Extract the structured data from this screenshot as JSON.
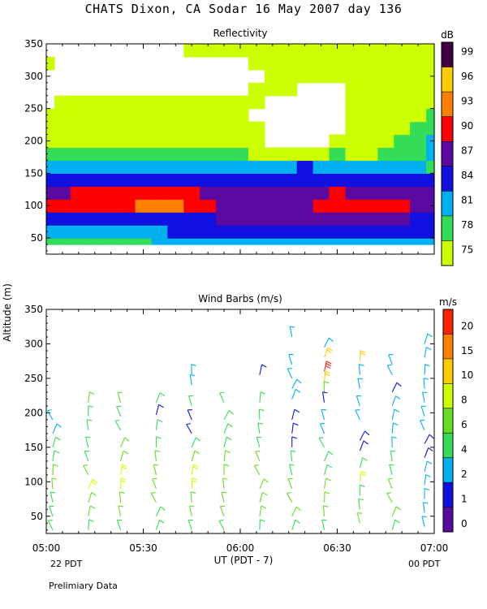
{
  "title": "CHATS Dixon, CA  Sodar  16 May 2007  day 136",
  "shared_ylabel": "Altitude (m)",
  "xlabel": "UT  (PDT - 7)",
  "left_local_time": "22 PDT",
  "right_local_time": "00 PDT",
  "footnote": "Prelimiary Data",
  "chart_data": [
    {
      "type": "heatmap",
      "title": "Reflectivity",
      "colorbar_unit": "dB",
      "ylim": [
        25,
        350
      ],
      "yticks": [
        50,
        100,
        150,
        200,
        250,
        300,
        350
      ],
      "xticks": [
        "05:00",
        "05:30",
        "06:00",
        "06:30",
        "07:00"
      ],
      "x": [
        "05:00",
        "05:05",
        "05:10",
        "05:15",
        "05:20",
        "05:25",
        "05:30",
        "05:35",
        "05:40",
        "05:45",
        "05:50",
        "05:55",
        "06:00",
        "06:05",
        "06:10",
        "06:15",
        "06:20",
        "06:25",
        "06:30",
        "06:35",
        "06:40",
        "06:45",
        "06:50",
        "06:55",
        "07:00"
      ],
      "y": [
        40,
        60,
        80,
        100,
        120,
        140,
        160,
        180,
        200,
        220,
        240,
        260,
        280,
        300,
        320,
        340,
        350
      ],
      "colorbar": {
        "levels": [
          75,
          78,
          81,
          84,
          87,
          90,
          93,
          96,
          99
        ],
        "colors": [
          "#ccff00",
          "#33dd55",
          "#00b0f0",
          "#1010e0",
          "#5a0aa0",
          "#ff0000",
          "#ff8000",
          "#ffcc00",
          "#400040"
        ]
      },
      "values": [
        [
          80,
          80,
          79,
          80,
          80,
          80,
          80,
          81,
          81,
          81,
          81,
          82,
          82,
          82,
          82,
          82,
          82,
          82,
          82,
          82,
          82,
          82,
          82,
          82,
          82
        ],
        [
          82,
          82,
          82,
          82,
          82,
          82,
          83,
          83,
          84,
          84,
          84,
          85,
          85,
          85,
          85,
          85,
          85,
          85,
          85,
          85,
          85,
          85,
          85,
          85,
          84
        ],
        [
          85,
          86,
          86,
          86,
          86,
          86,
          86,
          86,
          86,
          86,
          86,
          87,
          88,
          88,
          88,
          88,
          88,
          88,
          88,
          88,
          88,
          88,
          87,
          86,
          86
        ],
        [
          91,
          91,
          91,
          91,
          91,
          92,
          93,
          94,
          94,
          92,
          91,
          88,
          88,
          88,
          88,
          88,
          89,
          90,
          91,
          91,
          91,
          91,
          90,
          89,
          88
        ],
        [
          88,
          89,
          90,
          90,
          90,
          90,
          90,
          90,
          90,
          90,
          89,
          88,
          88,
          88,
          88,
          88,
          88,
          89,
          90,
          89,
          88,
          88,
          88,
          88,
          88
        ],
        [
          85,
          85,
          85,
          85,
          86,
          86,
          86,
          86,
          86,
          86,
          86,
          86,
          86,
          86,
          86,
          85,
          85,
          86,
          86,
          86,
          86,
          86,
          85,
          85,
          85
        ],
        [
          82,
          82,
          83,
          82,
          82,
          82,
          82,
          82,
          82,
          82,
          82,
          83,
          83,
          83,
          83,
          83,
          84,
          83,
          83,
          83,
          82,
          82,
          82,
          82,
          80
        ],
        [
          78,
          78,
          78,
          78,
          78,
          79,
          79,
          78,
          78,
          78,
          78,
          78,
          78,
          77,
          77,
          77,
          77,
          77,
          78,
          77,
          77,
          78,
          78,
          80,
          81
        ],
        [
          77,
          77,
          77,
          77,
          77,
          77,
          76,
          76,
          76,
          77,
          77,
          77,
          77,
          76,
          73,
          73,
          73,
          74,
          76,
          77,
          76,
          77,
          78,
          79,
          81
        ],
        [
          76,
          76,
          76,
          76,
          76,
          76,
          76,
          76,
          76,
          76,
          76,
          76,
          76,
          75,
          70,
          70,
          70,
          72,
          74,
          75,
          76,
          76,
          77,
          78,
          79
        ],
        [
          75,
          75,
          75,
          76,
          76,
          76,
          75,
          75,
          75,
          75,
          75,
          75,
          75,
          70,
          70,
          70,
          70,
          70,
          72,
          75,
          75,
          76,
          76,
          77,
          78
        ],
        [
          70,
          75,
          77,
          75,
          75,
          75,
          75,
          75,
          75,
          75,
          75,
          75,
          75,
          75,
          70,
          70,
          70,
          70,
          70,
          75,
          75,
          76,
          75,
          76,
          77
        ],
        [
          70,
          70,
          70,
          70,
          70,
          70,
          70,
          70,
          70,
          70,
          70,
          70,
          70,
          75,
          75,
          75,
          72,
          72,
          70,
          75,
          75,
          75,
          75,
          76,
          76
        ],
        [
          70,
          70,
          70,
          70,
          70,
          70,
          70,
          70,
          70,
          70,
          70,
          70,
          70,
          70,
          75,
          76,
          76,
          76,
          75,
          75,
          75,
          75,
          75,
          76,
          76
        ],
        [
          75,
          70,
          70,
          70,
          70,
          70,
          70,
          70,
          70,
          70,
          70,
          70,
          70,
          75,
          76,
          77,
          77,
          77,
          75,
          75,
          75,
          75,
          75,
          75,
          75
        ],
        [
          70,
          70,
          70,
          70,
          70,
          70,
          70,
          70,
          70,
          75,
          77,
          76,
          75,
          75,
          76,
          76,
          76,
          75,
          75,
          75,
          75,
          75,
          75,
          75,
          77
        ],
        [
          70,
          70,
          70,
          70,
          70,
          70,
          70,
          70,
          70,
          75,
          77,
          76,
          75,
          75,
          75,
          75,
          75,
          75,
          75,
          75,
          75,
          75,
          75,
          75,
          77
        ]
      ]
    },
    {
      "type": "scatter",
      "title": "Wind Barbs (m/s)",
      "colorbar_unit": "m/s",
      "ylim": [
        25,
        350
      ],
      "yticks": [
        50,
        100,
        150,
        200,
        250,
        300,
        350
      ],
      "xticks": [
        "05:00",
        "05:30",
        "06:00",
        "06:30",
        "07:00"
      ],
      "colorbar": {
        "levels": [
          0,
          1,
          2,
          4,
          6,
          8,
          10,
          15,
          20
        ],
        "colors": [
          "#5a0aa0",
          "#1010e0",
          "#00b0f0",
          "#33dd55",
          "#66dd22",
          "#ccff00",
          "#ffcc00",
          "#ff8000",
          "#ff2000",
          "#ff0000"
        ]
      },
      "columns": [
        {
          "time": "05:02",
          "barbs": [
            [
              190,
              3
            ],
            [
              170,
              3
            ],
            [
              150,
              5
            ],
            [
              130,
              5
            ],
            [
              110,
              6
            ],
            [
              90,
              6
            ],
            [
              70,
              5
            ],
            [
              50,
              5
            ],
            [
              30,
              4
            ]
          ]
        },
        {
          "time": "05:13",
          "barbs": [
            [
              215,
              6
            ],
            [
              195,
              5
            ],
            [
              175,
              4
            ],
            [
              150,
              5
            ],
            [
              130,
              5
            ],
            [
              110,
              7
            ],
            [
              90,
              8
            ],
            [
              70,
              7
            ],
            [
              50,
              6
            ],
            [
              30,
              5
            ]
          ]
        },
        {
          "time": "05:23",
          "barbs": [
            [
              215,
              6
            ],
            [
              195,
              5
            ],
            [
              175,
              4
            ],
            [
              150,
              6
            ],
            [
              130,
              7
            ],
            [
              110,
              8
            ],
            [
              90,
              8
            ],
            [
              70,
              7
            ],
            [
              50,
              6
            ],
            [
              30,
              5
            ]
          ]
        },
        {
          "time": "05:34",
          "barbs": [
            [
              215,
              5
            ],
            [
              197,
              1
            ],
            [
              175,
              5
            ],
            [
              150,
              5
            ],
            [
              130,
              6
            ],
            [
              110,
              6
            ],
            [
              90,
              6
            ],
            [
              70,
              6
            ],
            [
              50,
              5
            ],
            [
              30,
              5
            ]
          ]
        },
        {
          "time": "05:45",
          "barbs": [
            [
              255,
              3
            ],
            [
              240,
              3
            ],
            [
              210,
              5
            ],
            [
              190,
              1
            ],
            [
              170,
              1
            ],
            [
              150,
              4
            ],
            [
              130,
              6
            ],
            [
              110,
              8
            ],
            [
              90,
              8
            ],
            [
              70,
              7
            ],
            [
              50,
              6
            ],
            [
              30,
              5
            ]
          ]
        },
        {
          "time": "05:55",
          "barbs": [
            [
              215,
              5
            ],
            [
              190,
              4
            ],
            [
              170,
              5
            ],
            [
              150,
              5
            ],
            [
              130,
              6
            ],
            [
              110,
              6
            ],
            [
              90,
              6
            ],
            [
              70,
              6
            ],
            [
              50,
              6
            ],
            [
              30,
              5
            ]
          ]
        },
        {
          "time": "06:06",
          "barbs": [
            [
              255,
              1
            ],
            [
              215,
              5
            ],
            [
              190,
              4
            ],
            [
              170,
              5
            ],
            [
              150,
              5
            ],
            [
              130,
              6
            ],
            [
              110,
              6
            ],
            [
              90,
              6
            ],
            [
              70,
              6
            ],
            [
              50,
              6
            ],
            [
              30,
              5
            ]
          ]
        },
        {
          "time": "06:16",
          "barbs": [
            [
              310,
              3
            ],
            [
              270,
              3
            ],
            [
              250,
              3
            ],
            [
              235,
              3
            ],
            [
              220,
              3
            ],
            [
              190,
              1
            ],
            [
              170,
              1
            ],
            [
              150,
              1
            ],
            [
              130,
              4
            ],
            [
              110,
              5
            ],
            [
              90,
              6
            ],
            [
              70,
              6
            ],
            [
              50,
              6
            ],
            [
              30,
              5
            ]
          ]
        },
        {
          "time": "06:26",
          "barbs": [
            [
              295,
              3
            ],
            [
              280,
              10
            ],
            [
              260,
              20
            ],
            [
              245,
              12
            ],
            [
              230,
              6
            ],
            [
              215,
              1
            ],
            [
              190,
              3
            ],
            [
              170,
              3
            ],
            [
              150,
              5
            ],
            [
              130,
              5
            ],
            [
              110,
              5
            ],
            [
              90,
              6
            ],
            [
              70,
              6
            ],
            [
              50,
              6
            ],
            [
              30,
              5
            ]
          ]
        },
        {
          "time": "06:37",
          "barbs": [
            [
              275,
              10
            ],
            [
              255,
              3
            ],
            [
              235,
              3
            ],
            [
              210,
              3
            ],
            [
              190,
              3
            ],
            [
              160,
              1
            ],
            [
              145,
              1
            ],
            [
              120,
              5
            ],
            [
              100,
              8
            ],
            [
              80,
              5
            ],
            [
              60,
              5
            ],
            [
              40,
              6
            ]
          ]
        },
        {
          "time": "06:47",
          "barbs": [
            [
              270,
              3
            ],
            [
              255,
              3
            ],
            [
              230,
              1
            ],
            [
              210,
              3
            ],
            [
              190,
              3
            ],
            [
              170,
              3
            ],
            [
              150,
              3
            ],
            [
              130,
              5
            ],
            [
              110,
              5
            ],
            [
              90,
              6
            ],
            [
              70,
              6
            ],
            [
              50,
              6
            ],
            [
              30,
              5
            ]
          ]
        },
        {
          "time": "06:57",
          "barbs": [
            [
              300,
              3
            ],
            [
              280,
              3
            ],
            [
              255,
              3
            ],
            [
              235,
              3
            ],
            [
              215,
              3
            ],
            [
              195,
              3
            ],
            [
              175,
              3
            ],
            [
              155,
              1
            ],
            [
              135,
              1
            ],
            [
              115,
              3
            ],
            [
              95,
              3
            ],
            [
              75,
              3
            ],
            [
              55,
              3
            ],
            [
              35,
              3
            ]
          ]
        }
      ]
    }
  ]
}
